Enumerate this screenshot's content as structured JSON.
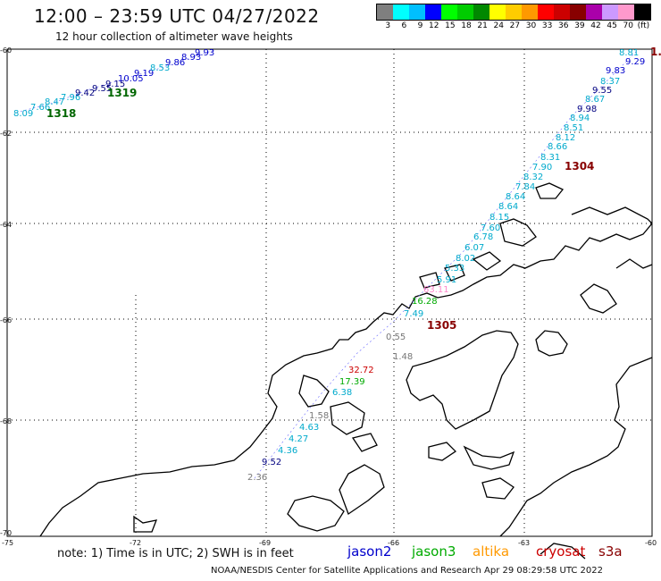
{
  "header": {
    "title": "12:00 – 23:59 UTC 04/27/2022",
    "subtitle": "12 hour collection of altimeter wave heights"
  },
  "scale": {
    "labels": [
      "3",
      "6",
      "9",
      "12",
      "15",
      "18",
      "21",
      "24",
      "27",
      "30",
      "33",
      "36",
      "39",
      "42",
      "45",
      "70",
      "(ft)"
    ],
    "colors": [
      "#7f7f7f",
      "#00ffff",
      "#00bfff",
      "#0000ff",
      "#00ff00",
      "#00cc00",
      "#008800",
      "#ffff00",
      "#ffcc00",
      "#ff9900",
      "#ff0000",
      "#cc0000",
      "#880000",
      "#aa00aa",
      "#cc99ff",
      "#ff99cc",
      "#000000"
    ]
  },
  "axes": {
    "lat_labels": [
      "-60",
      "-62",
      "-64",
      "-66",
      "-68",
      "-70"
    ],
    "lon_labels": [
      "-75",
      "-72",
      "-69",
      "-66",
      "-63",
      "-60"
    ]
  },
  "passes": [
    {
      "id": "track-nw",
      "color_name": "jason2"
    },
    {
      "id": "track-main",
      "color_name": "jason2"
    }
  ],
  "wave_labels": [
    {
      "t": "8.09",
      "c": "#00aacc"
    },
    {
      "t": "7.66",
      "c": "#00aacc"
    },
    {
      "t": "8.47",
      "c": "#00aacc"
    },
    {
      "t": "7.96",
      "c": "#00aacc"
    },
    {
      "t": "9.42",
      "c": "#000080"
    },
    {
      "t": "9.55",
      "c": "#000080"
    },
    {
      "t": "9.15",
      "c": "#000080"
    },
    {
      "t": "10.05",
      "c": "#0000cc"
    },
    {
      "t": "9.19",
      "c": "#0000cc"
    },
    {
      "t": "8.53",
      "c": "#00aacc"
    },
    {
      "t": "9.86",
      "c": "#0000cc"
    },
    {
      "t": "8.93",
      "c": "#0000cc"
    },
    {
      "t": "9.93",
      "c": "#0000cc"
    },
    {
      "t": "8.81",
      "c": "#00aacc"
    },
    {
      "t": "9.29",
      "c": "#0000cc"
    },
    {
      "t": "9.83",
      "c": "#0000cc"
    },
    {
      "t": "8.37",
      "c": "#00aacc"
    },
    {
      "t": "9.55",
      "c": "#000080"
    },
    {
      "t": "8.67",
      "c": "#00aacc"
    },
    {
      "t": "9.98",
      "c": "#000080"
    },
    {
      "t": "8.94",
      "c": "#00aacc"
    },
    {
      "t": "8.51",
      "c": "#00aacc"
    },
    {
      "t": "8.12",
      "c": "#00aacc"
    },
    {
      "t": "8.66",
      "c": "#00aacc"
    },
    {
      "t": "8.31",
      "c": "#00aacc"
    },
    {
      "t": "7.90",
      "c": "#00aacc"
    },
    {
      "t": "8.32",
      "c": "#00aacc"
    },
    {
      "t": "7.84",
      "c": "#00aacc"
    },
    {
      "t": "8.64",
      "c": "#00aacc"
    },
    {
      "t": "8.64",
      "c": "#00aacc"
    },
    {
      "t": "8.15",
      "c": "#00aacc"
    },
    {
      "t": "7.60",
      "c": "#00aacc"
    },
    {
      "t": "6.78",
      "c": "#00aacc"
    },
    {
      "t": "6.07",
      "c": "#00aacc"
    },
    {
      "t": "8.02",
      "c": "#00aacc"
    },
    {
      "t": "5.33",
      "c": "#00aacc"
    },
    {
      "t": "5.91",
      "c": "#00aacc"
    },
    {
      "t": "63.11",
      "c": "#ff88cc"
    },
    {
      "t": "16.28",
      "c": "#00aa00"
    },
    {
      "t": "7.49",
      "c": "#00aacc"
    },
    {
      "t": "0.55",
      "c": "#777777"
    },
    {
      "t": "1.48",
      "c": "#777777"
    },
    {
      "t": "32.72",
      "c": "#cc0000"
    },
    {
      "t": "17.39",
      "c": "#00aa00"
    },
    {
      "t": "6.38",
      "c": "#00aacc"
    },
    {
      "t": "1.58",
      "c": "#777777"
    },
    {
      "t": "4.63",
      "c": "#00aacc"
    },
    {
      "t": "4.27",
      "c": "#00aacc"
    },
    {
      "t": "4.36",
      "c": "#00aacc"
    },
    {
      "t": "9.52",
      "c": "#000080"
    },
    {
      "t": "2.36",
      "c": "#777777"
    }
  ],
  "pass_times": [
    {
      "t": "1318",
      "c": "#006600"
    },
    {
      "t": "1319",
      "c": "#006600"
    },
    {
      "t": "1304",
      "c": "#880000"
    },
    {
      "t": "1305",
      "c": "#880000"
    },
    {
      "t": "1.",
      "c": "#880000"
    }
  ],
  "footer": {
    "note": "note: 1) Time is in UTC; 2) SWH is in feet",
    "satellites": [
      {
        "name": "jason2",
        "color": "#0000cc"
      },
      {
        "name": "jason3",
        "color": "#00aa00"
      },
      {
        "name": "altika",
        "color": "#ff9900"
      },
      {
        "name": "cryosat",
        "color": "#cc0000"
      },
      {
        "name": "s3a",
        "color": "#880000"
      }
    ],
    "credit": "NOAA/NESDIS Center for Satellite Applications and Research   Apr 29 08:29:58 UTC 2022"
  }
}
